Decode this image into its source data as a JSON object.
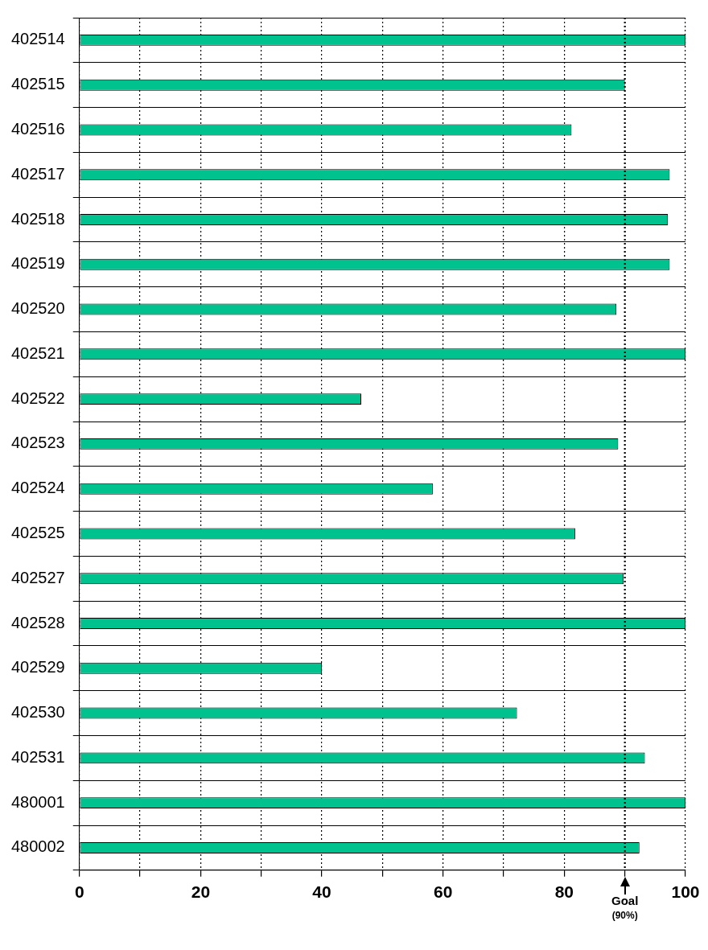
{
  "chart_data": {
    "type": "bar",
    "orientation": "horizontal",
    "categories": [
      "402514",
      "402515",
      "402516",
      "402517",
      "402518",
      "402519",
      "402520",
      "402521",
      "402522",
      "402523",
      "402524",
      "402525",
      "402527",
      "402528",
      "402529",
      "402530",
      "402531",
      "480001",
      "480002"
    ],
    "values": [
      100,
      90,
      81.2,
      97.4,
      97.1,
      97.4,
      88.6,
      100,
      46.5,
      88.9,
      58.3,
      81.8,
      89.8,
      100,
      40,
      72.2,
      93.3,
      100,
      92.4
    ],
    "color": "#00c28e",
    "xlim": [
      0,
      100
    ],
    "xticks": [
      0,
      {
        "value": 10,
        "label": null
      },
      20,
      {
        "value": 30,
        "label": null
      },
      40,
      {
        "value": 50,
        "label": null
      },
      60,
      {
        "value": 70,
        "label": null
      },
      80,
      {
        "value": 90,
        "label": null
      },
      100
    ],
    "grid": true,
    "legend": false,
    "ref_lines": [
      {
        "axis": "x",
        "value": 90,
        "label": "Goal (90%)",
        "line_style": "dotted"
      }
    ]
  }
}
